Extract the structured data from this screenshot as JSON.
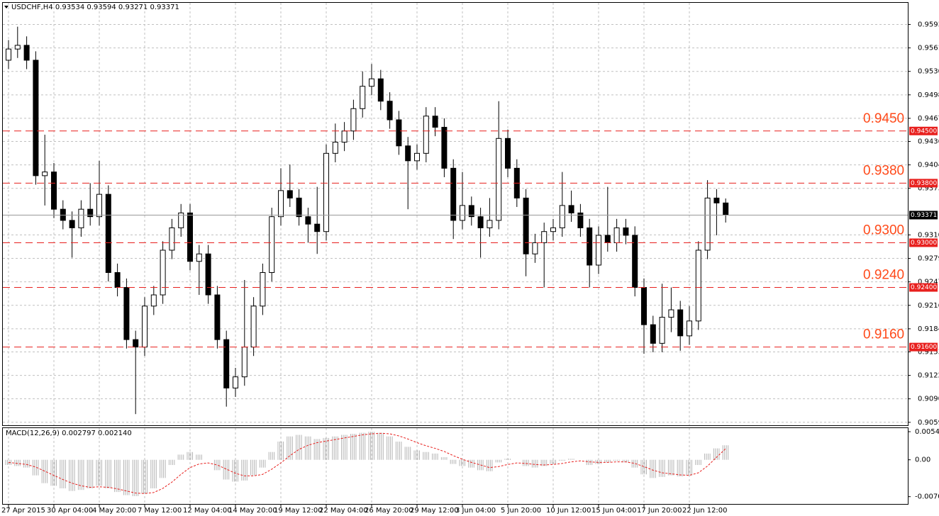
{
  "chart_data": [
    {
      "type": "candlestick",
      "title": "USDCHF,H4  0.93534 0.93594 0.93271 0.93371",
      "categories": [
        "27 Apr 2015",
        null,
        null,
        null,
        null,
        "30 Apr 04:00",
        null,
        null,
        null,
        null,
        "4 May 20:00",
        null,
        null,
        null,
        null,
        "7 May 12:00",
        null,
        null,
        null,
        null,
        "12 May 04:00",
        null,
        null,
        null,
        null,
        "14 May 20:00",
        null,
        null,
        null,
        null,
        "19 May 12:00",
        null,
        null,
        null,
        null,
        "22 May 04:00",
        null,
        null,
        null,
        null,
        "26 May 20:00",
        null,
        null,
        null,
        null,
        "29 May 12:00",
        null,
        null,
        null,
        null,
        "3 Jun 04:00",
        null,
        null,
        null,
        null,
        "5 Jun 20:00",
        null,
        null,
        null,
        null,
        "10 Jun 12:00",
        null,
        null,
        null,
        null,
        "15 Jun 04:00",
        null,
        null,
        null,
        null,
        "17 Jun 20:00",
        null,
        null,
        null,
        null,
        "22 Jun 12:00",
        null,
        null,
        null,
        null
      ],
      "open": [
        0.9545,
        0.956,
        0.9565,
        0.9545,
        0.939,
        0.9395,
        0.9345,
        0.933,
        0.932,
        0.9345,
        0.9335,
        0.9365,
        0.926,
        0.924,
        0.917,
        0.916,
        0.9215,
        0.923,
        0.929,
        0.932,
        0.934,
        0.9275,
        0.9285,
        0.923,
        0.917,
        0.9105,
        0.912,
        0.916,
        0.9215,
        0.926,
        0.9335,
        0.937,
        0.936,
        0.9335,
        0.9325,
        0.9315,
        0.942,
        0.9435,
        0.945,
        0.948,
        0.951,
        0.952,
        0.949,
        0.9465,
        0.943,
        0.941,
        0.942,
        0.947,
        0.9455,
        0.94,
        0.933,
        0.935,
        0.9335,
        0.932,
        0.933,
        0.944,
        0.94,
        0.936,
        0.9285,
        0.93,
        0.9315,
        0.932,
        0.935,
        0.934,
        0.932,
        0.927,
        0.931,
        0.93,
        0.932,
        0.931,
        0.924,
        0.919,
        0.9165,
        0.92,
        0.921,
        0.9175,
        0.9195,
        0.929,
        0.936,
        0.93534
      ],
      "high": [
        0.9572,
        0.959,
        0.9577,
        0.9557,
        0.9445,
        0.9407,
        0.9357,
        0.9342,
        0.9357,
        0.938,
        0.941,
        0.9377,
        0.9272,
        0.9252,
        0.9182,
        0.9227,
        0.9242,
        0.9302,
        0.9332,
        0.9352,
        0.9352,
        0.9297,
        0.9297,
        0.9242,
        0.9182,
        0.9132,
        0.925,
        0.9227,
        0.9272,
        0.9347,
        0.94,
        0.9405,
        0.9372,
        0.9347,
        0.9375,
        0.9432,
        0.946,
        0.9462,
        0.9492,
        0.953,
        0.954,
        0.9532,
        0.9502,
        0.9477,
        0.9442,
        0.9432,
        0.9482,
        0.9482,
        0.9467,
        0.9412,
        0.9395,
        0.9362,
        0.9347,
        0.936,
        0.949,
        0.9452,
        0.9412,
        0.9372,
        0.9312,
        0.9327,
        0.9332,
        0.9395,
        0.937,
        0.9352,
        0.9332,
        0.9322,
        0.9375,
        0.9332,
        0.9332,
        0.9322,
        0.9252,
        0.9202,
        0.9245,
        0.924,
        0.9222,
        0.9215,
        0.9302,
        0.9384,
        0.9372,
        0.93594
      ],
      "low": [
        0.9533,
        0.9548,
        0.9533,
        0.9378,
        0.935,
        0.9333,
        0.9318,
        0.928,
        0.9308,
        0.9323,
        0.9323,
        0.9248,
        0.9228,
        0.9158,
        0.907,
        0.9148,
        0.9203,
        0.9218,
        0.9278,
        0.9308,
        0.9263,
        0.923,
        0.9218,
        0.9158,
        0.908,
        0.9093,
        0.9108,
        0.9148,
        0.9203,
        0.9248,
        0.9323,
        0.9348,
        0.9323,
        0.93,
        0.9285,
        0.9303,
        0.9408,
        0.9423,
        0.9438,
        0.9468,
        0.9498,
        0.9478,
        0.9453,
        0.9418,
        0.9345,
        0.9398,
        0.9408,
        0.9443,
        0.9388,
        0.9305,
        0.9318,
        0.9323,
        0.928,
        0.9308,
        0.9318,
        0.9388,
        0.9348,
        0.9255,
        0.9273,
        0.924,
        0.9303,
        0.9308,
        0.9328,
        0.9308,
        0.924,
        0.9258,
        0.9288,
        0.9288,
        0.9298,
        0.9228,
        0.9151,
        0.9153,
        0.9153,
        0.918,
        0.9155,
        0.9163,
        0.9183,
        0.9278,
        0.931,
        0.93271
      ],
      "close": [
        0.956,
        0.9565,
        0.9545,
        0.939,
        0.9395,
        0.9345,
        0.933,
        0.932,
        0.9345,
        0.9335,
        0.9365,
        0.926,
        0.924,
        0.917,
        0.916,
        0.9215,
        0.923,
        0.929,
        0.932,
        0.934,
        0.9275,
        0.9285,
        0.923,
        0.917,
        0.9105,
        0.912,
        0.916,
        0.9215,
        0.926,
        0.9335,
        0.937,
        0.936,
        0.9335,
        0.9325,
        0.9315,
        0.942,
        0.9435,
        0.945,
        0.948,
        0.951,
        0.952,
        0.949,
        0.9465,
        0.943,
        0.941,
        0.942,
        0.947,
        0.9455,
        0.94,
        0.933,
        0.935,
        0.9335,
        0.932,
        0.933,
        0.944,
        0.94,
        0.936,
        0.9285,
        0.93,
        0.9315,
        0.932,
        0.935,
        0.934,
        0.932,
        0.927,
        0.931,
        0.93,
        0.932,
        0.931,
        0.924,
        0.919,
        0.9165,
        0.92,
        0.921,
        0.9175,
        0.9195,
        0.929,
        0.936,
        0.93534,
        0.93371
      ],
      "ylim": [
        0.9055,
        0.9622
      ],
      "yticks": [
        {
          "value": 0.9593,
          "label": "0.95930"
        },
        {
          "value": 0.95615,
          "label": "0.95615"
        },
        {
          "value": 0.953,
          "label": "0.95300"
        },
        {
          "value": 0.94985,
          "label": "0.94985"
        },
        {
          "value": 0.9467,
          "label": "0.94670"
        },
        {
          "value": 0.9436,
          "label": "0.94360"
        },
        {
          "value": 0.94045,
          "label": "0.94045"
        },
        {
          "value": 0.9373,
          "label": "0.93730"
        },
        {
          "value": 0.93105,
          "label": "0.93105"
        },
        {
          "value": 0.9279,
          "label": "0.92790"
        },
        {
          "value": 0.92475,
          "label": "0.92475"
        },
        {
          "value": 0.9216,
          "label": "0.92160"
        },
        {
          "value": 0.91845,
          "label": "0.91845"
        },
        {
          "value": 0.91535,
          "label": "0.91535"
        },
        {
          "value": 0.9122,
          "label": "0.91220"
        },
        {
          "value": 0.90905,
          "label": "0.90905"
        },
        {
          "value": 0.9059,
          "label": "0.90590"
        }
      ],
      "levels": [
        {
          "value": 0.945,
          "label": "0.9450",
          "tag": "0.94500"
        },
        {
          "value": 0.938,
          "label": "0.9380",
          "tag": "0.93800"
        },
        {
          "value": 0.93,
          "label": "0.9300",
          "tag": "0.93000"
        },
        {
          "value": 0.924,
          "label": "0.9240",
          "tag": "0.92400"
        },
        {
          "value": 0.916,
          "label": "0.9160",
          "tag": "0.91600"
        }
      ],
      "level_color": "#e8201e",
      "level_label_color": "#ff4a1a",
      "last_price": 0.93371,
      "grid": true
    },
    {
      "type": "macd",
      "title": "MACD(12,26,9) 0.002797 0.002140",
      "histogram": [
        -0.001,
        -0.0012,
        -0.0015,
        -0.003,
        -0.0045,
        -0.005,
        -0.0055,
        -0.006,
        -0.0058,
        -0.0055,
        -0.005,
        -0.0055,
        -0.0062,
        -0.0068,
        -0.007,
        -0.0065,
        -0.0055,
        -0.0035,
        -0.001,
        0.001,
        0.0015,
        0.001,
        0,
        -0.002,
        -0.0038,
        -0.0042,
        -0.004,
        -0.003,
        -0.0015,
        0.0015,
        0.0035,
        0.0045,
        0.0048,
        0.0045,
        0.004,
        0.0042,
        0.0045,
        0.0048,
        0.005,
        0.0052,
        0.0054,
        0.0052,
        0.0045,
        0.0035,
        0.0025,
        0.0018,
        0.0015,
        0.0012,
        0.0005,
        -0.0008,
        -0.0012,
        -0.0015,
        -0.002,
        -0.0022,
        -0.0005,
        0.0002,
        0,
        -0.0012,
        -0.0015,
        -0.0012,
        -0.0008,
        -0.0002,
        0.0002,
        0,
        -0.001,
        -0.0008,
        -0.0005,
        -0.0002,
        -0.0005,
        -0.0015,
        -0.0028,
        -0.0035,
        -0.0033,
        -0.003,
        -0.0032,
        -0.003,
        -0.001,
        0.0012,
        0.0022,
        0.002797
      ],
      "signal": [
        -0.0005,
        -0.0007,
        -0.0009,
        -0.0014,
        -0.0022,
        -0.003,
        -0.0038,
        -0.0045,
        -0.005,
        -0.0053,
        -0.0052,
        -0.0053,
        -0.0056,
        -0.006,
        -0.0064,
        -0.0065,
        -0.0063,
        -0.0055,
        -0.0043,
        -0.0028,
        -0.0015,
        -0.0008,
        -0.0006,
        -0.001,
        -0.0018,
        -0.0026,
        -0.0031,
        -0.0031,
        -0.0028,
        -0.0018,
        -0.0006,
        0.0008,
        0.002,
        0.0028,
        0.0033,
        0.0036,
        0.0039,
        0.0042,
        0.0045,
        0.0048,
        0.005,
        0.0051,
        0.005,
        0.0046,
        0.004,
        0.0033,
        0.0027,
        0.0022,
        0.0016,
        0.0008,
        0.0001,
        -0.0005,
        -0.001,
        -0.0015,
        -0.0013,
        -0.0009,
        -0.0006,
        -0.0007,
        -0.0009,
        -0.001,
        -0.0009,
        -0.0007,
        -0.0004,
        -0.0002,
        -0.0004,
        -0.0005,
        -0.0005,
        -0.0004,
        -0.0004,
        -0.0007,
        -0.0013,
        -0.002,
        -0.0025,
        -0.0027,
        -0.0029,
        -0.003,
        -0.0025,
        -0.0012,
        0.0005,
        0.00214
      ],
      "histogram_color": "#b4b4b4",
      "signal_color": "#e8201e",
      "ylim": [
        -0.0085,
        0.0061
      ],
      "yticks": [
        0.00541,
        {
          "value": 0,
          "label": "0.00"
        },
        -0.007095
      ]
    }
  ]
}
